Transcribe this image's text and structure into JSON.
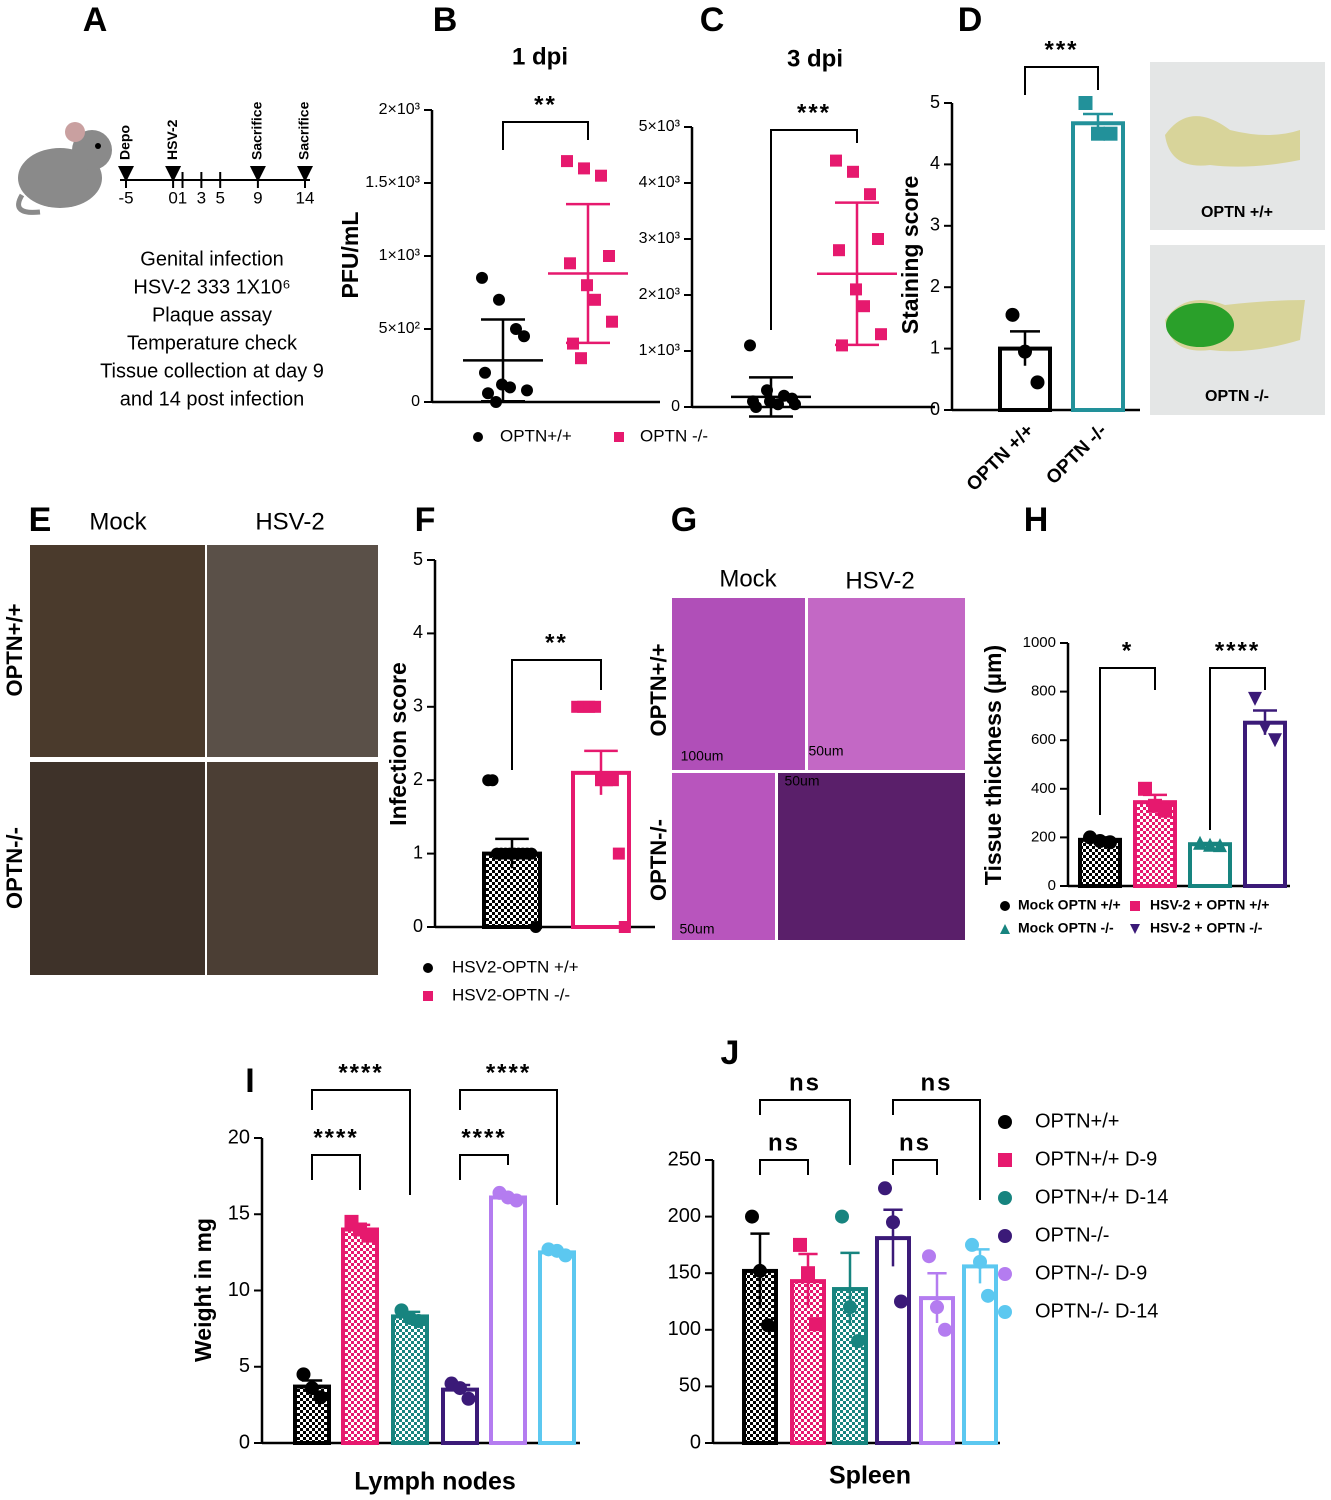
{
  "panel_labels": [
    "A",
    "B",
    "C",
    "D",
    "E",
    "F",
    "G",
    "H",
    "I",
    "J"
  ],
  "panel_a": {
    "markers": [
      {
        "label": "Depo",
        "day": -5
      },
      {
        "label": "HSV-2",
        "day": 0
      },
      {
        "label": "Sacrifice",
        "day": 9
      },
      {
        "label": "Sacrifice",
        "day": 14
      }
    ],
    "days": [
      -5,
      0,
      1,
      3,
      5,
      9,
      14
    ],
    "notes": [
      "Genital infection",
      "HSV-2 333 1X10⁶",
      "Plaque assay",
      "Temperature check",
      "Tissue collection at day 9",
      "and 14 post infection"
    ]
  },
  "panel_d_photos": [
    "OPTN +/+",
    "OPTN -/-"
  ],
  "panel_e": {
    "columns": [
      "Mock",
      "HSV-2"
    ],
    "rows": [
      "OPTN+/+",
      "OPTN-/-"
    ]
  },
  "panel_g": {
    "columns": [
      "Mock",
      "HSV-2"
    ],
    "rows": [
      "OPTN+/+",
      "OPTN-/-"
    ],
    "scale_bars": [
      "100um",
      "50um",
      "50um",
      "50um"
    ]
  },
  "chart_data": [
    {
      "type": "scatter",
      "title": "1 dpi",
      "ylabel": "PFU/mL",
      "ylim": [
        0,
        2000
      ],
      "yticks": [
        0,
        {
          "value": 500,
          "label": "5×10²"
        },
        {
          "value": 1000,
          "label": "1×10³"
        },
        {
          "value": 1500,
          "label": "1.5×10³"
        },
        {
          "value": 2000,
          "label": "2×10³"
        }
      ],
      "series": [
        {
          "name": "OPTN+/+",
          "color": "#000000",
          "marker": "circle",
          "values": [
            850,
            700,
            500,
            450,
            200,
            120,
            100,
            80,
            60,
            0
          ],
          "mean": 285,
          "sd": 280
        },
        {
          "name": "OPTN -/-",
          "color": "#e6196e",
          "marker": "square",
          "values": [
            1650,
            1600,
            1550,
            1000,
            950,
            800,
            700,
            550,
            400,
            300
          ],
          "mean": 880,
          "sd": 475
        }
      ],
      "significance": [
        "**"
      ]
    },
    {
      "type": "scatter",
      "title": "3 dpi",
      "ylim": [
        0,
        5000
      ],
      "yticks": [
        0,
        {
          "value": 1000,
          "label": "1×10³"
        },
        {
          "value": 2000,
          "label": "2×10³"
        },
        {
          "value": 3000,
          "label": "3×10³"
        },
        {
          "value": 4000,
          "label": "4×10³"
        },
        {
          "value": 5000,
          "label": "5×10³"
        }
      ],
      "series": [
        {
          "color": "#000000",
          "marker": "circle",
          "values": [
            1100,
            300,
            200,
            150,
            100,
            100,
            50,
            50,
            0
          ],
          "mean": 180,
          "sd": 350
        },
        {
          "color": "#e6196e",
          "marker": "square",
          "values": [
            4400,
            4200,
            3800,
            3000,
            2800,
            2100,
            1800,
            1300,
            1100
          ],
          "mean": 2380,
          "sd": 1270
        }
      ],
      "significance": [
        "***"
      ]
    },
    {
      "type": "bar",
      "ylabel": "Staining score",
      "ylim": [
        0,
        5
      ],
      "yticks": [
        0,
        1,
        2,
        3,
        4,
        5
      ],
      "categories": [
        "OPTN +/+",
        "OPTN -/-"
      ],
      "series": [
        {
          "color": "#000000",
          "fill": "open",
          "marker": "circle",
          "value": 1.0,
          "error": 0.28,
          "points": [
            1.55,
            0.95,
            0.45
          ]
        },
        {
          "color": "#22919a",
          "fill": "open",
          "marker": "square",
          "value": 4.67,
          "error": 0.15,
          "points": [
            5.0,
            4.5,
            4.5
          ]
        }
      ],
      "significance": [
        "***"
      ]
    },
    {
      "type": "bar",
      "ylabel": "Infection score",
      "ylim": [
        0,
        5
      ],
      "yticks": [
        0,
        1,
        2,
        3,
        4,
        5
      ],
      "series": [
        {
          "name": "HSV2-OPTN +/+",
          "color": "#000000",
          "fill": "checker",
          "marker": "circle",
          "value": 1.0,
          "error": 0.2,
          "points": [
            2,
            2,
            1,
            1,
            1,
            1,
            1,
            1,
            1,
            1,
            1,
            0
          ]
        },
        {
          "name": "HSV2-OPTN -/-",
          "color": "#e6196e",
          "fill": "open",
          "marker": "square",
          "value": 2.1,
          "error": 0.3,
          "points": [
            3,
            3,
            3,
            3,
            2,
            2,
            2,
            1,
            0
          ]
        }
      ],
      "significance": [
        "**"
      ]
    },
    {
      "type": "bar",
      "ylabel": "Tissue thickness (µm)",
      "ylim": [
        0,
        1000
      ],
      "yticks": [
        0,
        200,
        400,
        600,
        800,
        1000
      ],
      "series": [
        {
          "name": "Mock OPTN +/+",
          "color": "#000000",
          "fill": "checker",
          "marker": "circle",
          "value": 190,
          "error": 10,
          "points": [
            200,
            185,
            180
          ]
        },
        {
          "name": "HSV-2 + OPTN +/+",
          "color": "#e6196e",
          "fill": "checker",
          "marker": "square",
          "value": 345,
          "error": 30,
          "points": [
            400,
            330,
            310
          ]
        },
        {
          "name": "Mock OPTN -/-",
          "color": "#17847f",
          "fill": "open",
          "marker": "triangle-up",
          "value": 172,
          "error": 5,
          "points": [
            178,
            170,
            168
          ]
        },
        {
          "name": "HSV-2 + OPTN -/-",
          "color": "#3b1a78",
          "fill": "open",
          "marker": "triangle-down",
          "value": 672,
          "error": 50,
          "points": [
            770,
            650,
            600
          ]
        }
      ],
      "significance": [
        "*",
        "****"
      ]
    },
    {
      "type": "bar",
      "ylabel": "Weight in mg",
      "xlabel": "Lymph nodes",
      "ylim": [
        0,
        20
      ],
      "yticks": [
        0,
        5,
        10,
        15,
        20
      ],
      "series": [
        {
          "color": "#000000",
          "fill": "checker",
          "marker": "circle",
          "value": 3.7,
          "error": 0.4,
          "points": [
            4.5,
            3.6,
            3.0
          ]
        },
        {
          "color": "#e6196e",
          "fill": "checker",
          "marker": "square",
          "value": 14.0,
          "error": 0.3,
          "points": [
            14.5,
            14.0,
            13.6
          ]
        },
        {
          "color": "#17847f",
          "fill": "checker",
          "marker": "circle",
          "value": 8.3,
          "error": 0.3,
          "points": [
            8.7,
            8.2,
            8.0
          ]
        },
        {
          "color": "#3b1a78",
          "fill": "open",
          "marker": "circle",
          "value": 3.5,
          "error": 0.3,
          "points": [
            3.9,
            3.6,
            2.9
          ]
        },
        {
          "color": "#b47cf0",
          "fill": "open",
          "marker": "circle",
          "value": 16.1,
          "error": 0.15,
          "points": [
            16.4,
            16.1,
            15.9
          ]
        },
        {
          "color": "#5cc8f0",
          "fill": "open",
          "marker": "circle",
          "value": 12.5,
          "error": 0.15,
          "points": [
            12.7,
            12.6,
            12.3
          ]
        }
      ],
      "significance": [
        "****",
        "****",
        "****",
        "****"
      ]
    },
    {
      "type": "bar",
      "xlabel": "Spleen",
      "ylim": [
        0,
        250
      ],
      "yticks": [
        0,
        50,
        100,
        150,
        200,
        250
      ],
      "series": [
        {
          "name": "OPTN+/+",
          "color": "#000000",
          "fill": "checker",
          "marker": "circle",
          "value": 152,
          "error": 33,
          "points": [
            200,
            152,
            104
          ]
        },
        {
          "name": "OPTN+/+ D-9",
          "color": "#e6196e",
          "fill": "checker",
          "marker": "square",
          "value": 143,
          "error": 24,
          "points": [
            175,
            150,
            105
          ]
        },
        {
          "name": "OPTN+/+ D-14",
          "color": "#17847f",
          "fill": "checker",
          "marker": "circle",
          "value": 136,
          "error": 32,
          "points": [
            200,
            120,
            90
          ]
        },
        {
          "name": "OPTN-/-",
          "color": "#3b1a78",
          "fill": "open",
          "marker": "circle",
          "value": 181,
          "error": 25,
          "points": [
            225,
            195,
            125
          ]
        },
        {
          "name": "OPTN-/- D-9",
          "color": "#b47cf0",
          "fill": "open",
          "marker": "circle",
          "value": 128,
          "error": 22,
          "points": [
            165,
            120,
            100
          ]
        },
        {
          "name": "OPTN-/- D-14",
          "color": "#5cc8f0",
          "fill": "open",
          "marker": "circle",
          "value": 156,
          "error": 15,
          "points": [
            175,
            160,
            130
          ]
        }
      ],
      "significance": [
        "ns",
        "ns",
        "ns",
        "ns"
      ]
    }
  ]
}
